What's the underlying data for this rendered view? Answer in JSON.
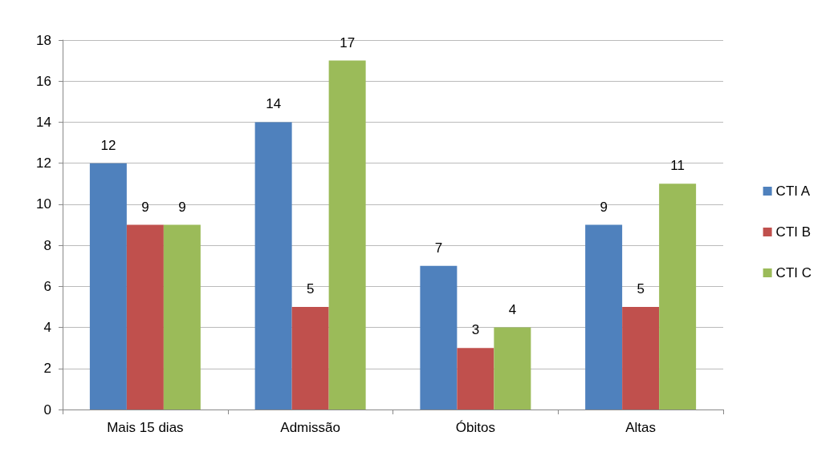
{
  "chart_data": {
    "type": "bar",
    "categories": [
      "Mais 15 dias",
      "Admissão",
      "Óbitos",
      "Altas"
    ],
    "series": [
      {
        "name": "CTI A",
        "color": "#4f81bd",
        "values": [
          12,
          14,
          7,
          9
        ]
      },
      {
        "name": "CTI B",
        "color": "#c0504d",
        "values": [
          9,
          5,
          3,
          5
        ]
      },
      {
        "name": "CTI C",
        "color": "#9bbb59",
        "values": [
          9,
          17,
          4,
          11
        ]
      }
    ],
    "ylim": [
      0,
      18
    ],
    "yticks": [
      0,
      2,
      4,
      6,
      8,
      10,
      12,
      14,
      16,
      18
    ],
    "grid": "y",
    "legend": "right",
    "data_labels": true
  }
}
